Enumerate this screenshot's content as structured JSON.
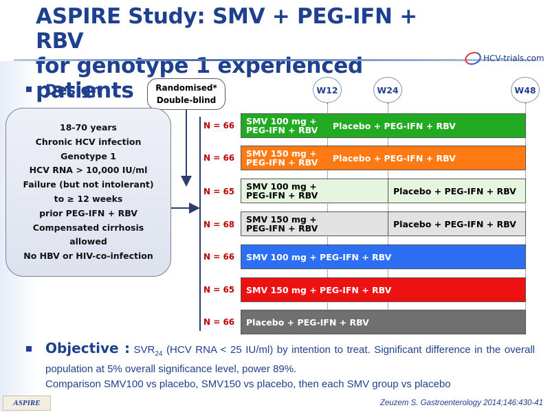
{
  "header": {
    "title_line1": "ASPIRE Study: SMV + PEG-IFN + RBV",
    "title_line2": "for genotype 1 experienced patients",
    "logo_text": "HCV-trials.com"
  },
  "design": {
    "label": "Design",
    "randomisation": [
      "Randomised*",
      "Double-blind"
    ],
    "criteria": [
      "18-70 years",
      "Chronic HCV infection",
      "Genotype 1",
      "HCV RNA > 10,000 IU/ml",
      "Failure (but not intolerant)",
      "to ≥ 12 weeks",
      "prior PEG-IFN + RBV",
      "Compensated cirrhosis",
      "allowed",
      "No HBV or HIV-co-infection"
    ],
    "timepoints": [
      "W12",
      "W24",
      "W48"
    ]
  },
  "arms": [
    {
      "n": "N = 66",
      "seg1": [
        "SMV 100 mg +",
        "PEG-IFN + RBV"
      ],
      "seg2": "Placebo + PEG-IFN + RBV",
      "split": "w12",
      "color1": "#ffffff",
      "color2": "#22aa22",
      "text1": "#ffffff",
      "text2": "#ffffff",
      "bg": "#22aa22"
    },
    {
      "n": "N = 66",
      "seg1": [
        "SMV 150 mg +",
        "PEG-IFN + RBV"
      ],
      "seg2": "Placebo + PEG-IFN + RBV",
      "split": "w12",
      "color2": "#ff7a12",
      "text1": "#ffffff",
      "text2": "#ffffff",
      "bg": "#ff7a12"
    },
    {
      "n": "N = 65",
      "seg1": [
        "SMV 100 mg +",
        "PEG-IFN + RBV"
      ],
      "seg2": "Placebo + PEG-IFN + RBV",
      "split": "w24",
      "text1": "#000000",
      "text2": "#000000",
      "bg": "#e6f5df"
    },
    {
      "n": "N = 68",
      "seg1": [
        "SMV 150 mg +",
        "PEG-IFN + RBV"
      ],
      "seg2": "Placebo + PEG-IFN + RBV",
      "split": "w24",
      "text1": "#000000",
      "text2": "#000000",
      "bg": "#e2e2e2"
    },
    {
      "n": "N = 66",
      "seg1": [
        "SMV 100 mg + PEG-IFN + RBV"
      ],
      "seg2": "",
      "split": "none",
      "text1": "#ffffff",
      "text2": "#ffffff",
      "bg": "#2c6ff2"
    },
    {
      "n": "N = 65",
      "seg1": [
        "SMV 150 mg + PEG-IFN + RBV"
      ],
      "seg2": "",
      "split": "none",
      "text1": "#ffffff",
      "text2": "#ffffff",
      "bg": "#ee1111"
    },
    {
      "n": "N = 66",
      "seg1": [
        "Placebo + PEG-IFN + RBV"
      ],
      "seg2": "",
      "split": "none",
      "text1": "#ffffff",
      "text2": "#ffffff",
      "bg": "#707070"
    }
  ],
  "objective": {
    "label": "Objective :",
    "svr": "SVR",
    "svr_sub": "24",
    "text": " (HCV RNA < 25 IU/ml) by intention to treat. Significant difference in the overall population at 5% overall significance level, power 89%.",
    "comparison": "Comparison SMV100 vs placebo, SMV150 vs placebo, then each SMV group vs placebo"
  },
  "footer": {
    "tag": "ASPIRE",
    "citation": "Zeuzem S. Gastroenterology 2014;146:430-41"
  }
}
